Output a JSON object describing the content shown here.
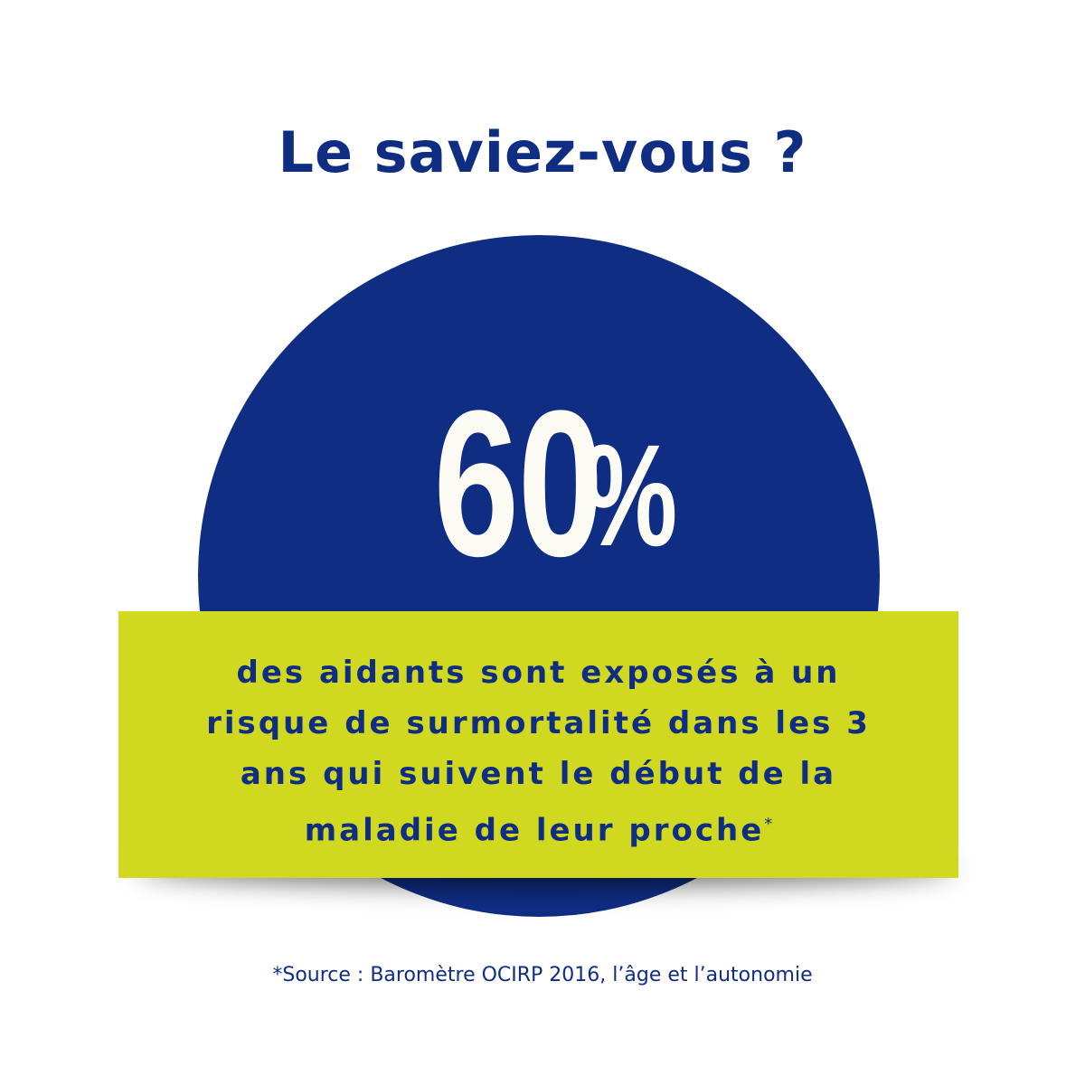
{
  "headline": "Le saviez-vous ?",
  "stat": {
    "number": "60",
    "percent": "%"
  },
  "description": {
    "lines": [
      "des aidants sont exposés à un",
      "risque de surmortalité dans les 3",
      "ans qui suivent le début de la",
      "maladie de leur proche"
    ],
    "footnote_mark": "*"
  },
  "source": "*Source : Baromètre OCIRP 2016, l’âge et l’autonomie",
  "colors": {
    "navy": "#0f2d83",
    "lime": "#d0d81f",
    "white": "#fbfbf4"
  }
}
